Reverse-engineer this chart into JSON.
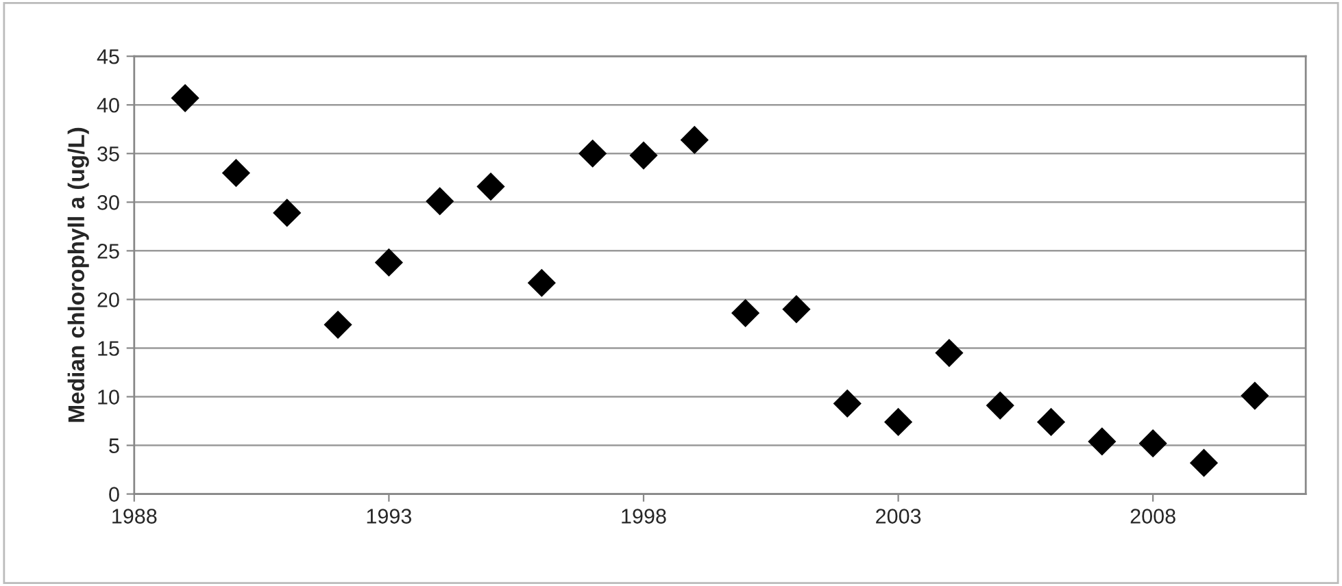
{
  "chart_data": {
    "type": "scatter",
    "ylabel": "Median chlorophyll a (ug/L)",
    "x": [
      1989,
      1990,
      1991,
      1992,
      1993,
      1994,
      1995,
      1996,
      1997,
      1998,
      1999,
      2000,
      2001,
      2002,
      2003,
      2004,
      2005,
      2006,
      2007,
      2008,
      2009,
      2010
    ],
    "series": [
      {
        "color": "#000000",
        "values": [
          40.7,
          33.0,
          28.9,
          17.4,
          23.8,
          30.1,
          31.6,
          21.7,
          35.0,
          34.8,
          36.4,
          18.6,
          19.0,
          9.3,
          7.4,
          14.5,
          9.1,
          7.4,
          5.4,
          5.2,
          3.2,
          10.1
        ]
      }
    ],
    "xlim": [
      1988,
      2011
    ],
    "xticks": [
      1988,
      1993,
      1998,
      2003,
      2008
    ],
    "ylim": [
      0,
      45
    ],
    "yticks": [
      0,
      5,
      10,
      15,
      20,
      25,
      30,
      35,
      40,
      45
    ],
    "grid": "y",
    "marker": "diamond"
  }
}
